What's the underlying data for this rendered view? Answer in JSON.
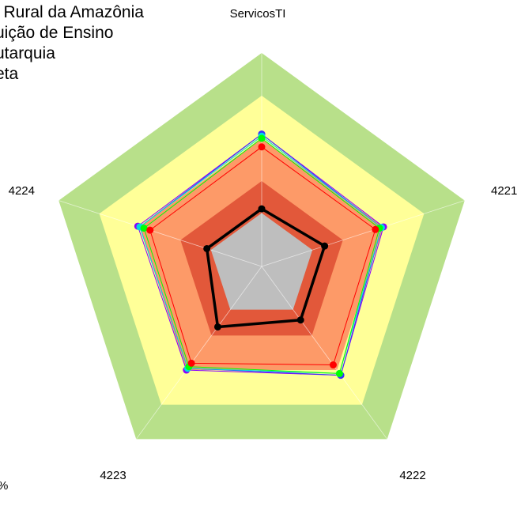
{
  "header": {
    "line1": "l Rural da Amazônia",
    "line2": "uição de Ensino",
    "line3": "utarquia",
    "line4": "eta"
  },
  "footer_text": "%",
  "chart_data": {
    "type": "radar",
    "axes": [
      "ServicosTI",
      "4221",
      "4222",
      "4223",
      "4224"
    ],
    "rmax": 1.0,
    "bands": [
      {
        "from": 0.0,
        "to": 0.25,
        "color": "#bebebe"
      },
      {
        "from": 0.25,
        "to": 0.4,
        "color": "#e2583a"
      },
      {
        "from": 0.4,
        "to": 0.6,
        "color": "#fd9a68"
      },
      {
        "from": 0.6,
        "to": 0.8,
        "color": "#ffff98"
      },
      {
        "from": 0.8,
        "to": 1.0,
        "color": "#b8e08a"
      }
    ],
    "series": [
      {
        "color": "#000000",
        "values": [
          0.27,
          0.31,
          0.31,
          0.35,
          0.27
        ]
      },
      {
        "color": "#ff0000",
        "values": [
          0.56,
          0.56,
          0.57,
          0.56,
          0.55
        ]
      },
      {
        "color": "#00ff00",
        "values": [
          0.6,
          0.58,
          0.62,
          0.58,
          0.58
        ]
      },
      {
        "color": "#00dddd",
        "values": [
          0.61,
          0.59,
          0.62,
          0.59,
          0.6
        ]
      },
      {
        "color": "#3333ff",
        "values": [
          0.62,
          0.59,
          0.63,
          0.59,
          0.6
        ]
      },
      {
        "color": "#8800ff",
        "values": [
          0.62,
          0.6,
          0.63,
          0.6,
          0.61
        ]
      }
    ]
  }
}
